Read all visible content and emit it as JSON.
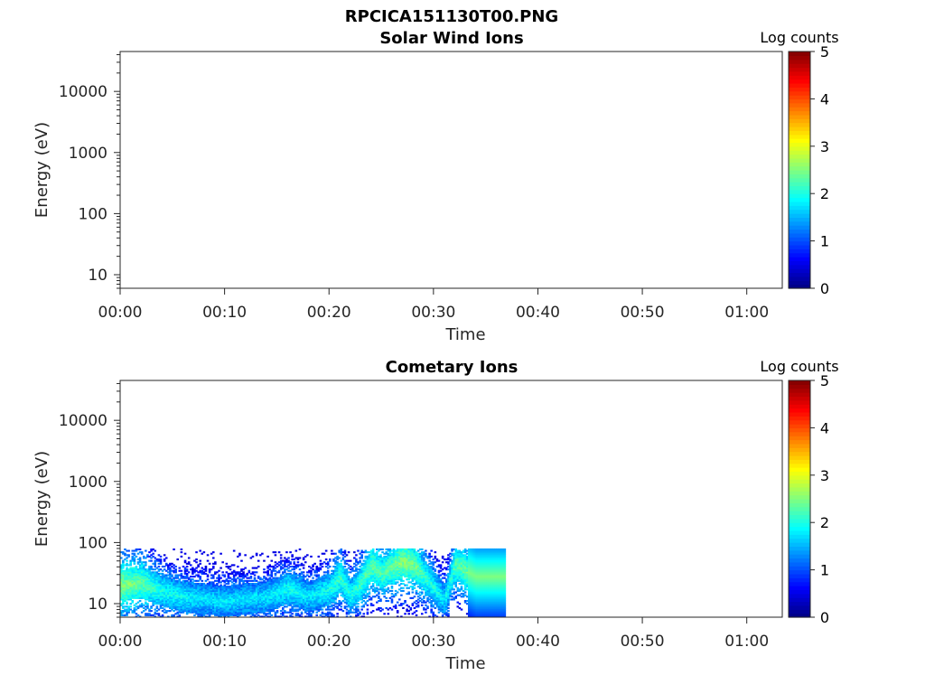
{
  "figure": {
    "title": "RPCICA151130T00.PNG"
  },
  "chart_data": [
    {
      "type": "heatmap",
      "title": "Solar Wind Ions",
      "xlabel": "Time",
      "ylabel": "Energy (eV)",
      "x_ticks": [
        "00:00",
        "00:10",
        "00:20",
        "00:30",
        "00:40",
        "00:50",
        "01:00"
      ],
      "x_range_minutes": [
        0,
        63.4
      ],
      "y_scale": "log",
      "y_ticks": [
        "10",
        "100",
        "1000",
        "10000"
      ],
      "y_range": [
        6,
        45000
      ],
      "colorbar": {
        "label": "Log counts",
        "ticks": [
          "0",
          "1",
          "2",
          "3",
          "4",
          "5"
        ],
        "range": [
          0,
          5
        ],
        "colormap": "jet"
      },
      "data": []
    },
    {
      "type": "heatmap",
      "title": "Cometary Ions",
      "xlabel": "Time",
      "ylabel": "Energy (eV)",
      "x_ticks": [
        "00:00",
        "00:10",
        "00:20",
        "00:30",
        "00:40",
        "00:50",
        "01:00"
      ],
      "x_range_minutes": [
        0,
        63.4
      ],
      "y_scale": "log",
      "y_ticks": [
        "10",
        "100",
        "1000",
        "10000"
      ],
      "y_range": [
        6,
        45000
      ],
      "colorbar": {
        "label": "Log counts",
        "ticks": [
          "0",
          "1",
          "2",
          "3",
          "4",
          "5"
        ],
        "range": [
          0,
          5
        ],
        "colormap": "jet"
      },
      "data_extent": {
        "t_start_min": 0,
        "t_end_min": 36.8,
        "e_min_ev": 6,
        "e_max_ev": 80
      },
      "peak_energy_track": [
        {
          "t_min": 0,
          "e_ev": 20,
          "log_counts": 2.6
        },
        {
          "t_min": 2,
          "e_ev": 22,
          "log_counts": 2.4
        },
        {
          "t_min": 4,
          "e_ev": 16,
          "log_counts": 2.0
        },
        {
          "t_min": 6,
          "e_ev": 13,
          "log_counts": 1.9
        },
        {
          "t_min": 8,
          "e_ev": 12,
          "log_counts": 1.8
        },
        {
          "t_min": 10,
          "e_ev": 11,
          "log_counts": 1.8
        },
        {
          "t_min": 12,
          "e_ev": 12,
          "log_counts": 1.8
        },
        {
          "t_min": 14,
          "e_ev": 13,
          "log_counts": 1.8
        },
        {
          "t_min": 16,
          "e_ev": 18,
          "log_counts": 2.0
        },
        {
          "t_min": 18,
          "e_ev": 13,
          "log_counts": 1.8
        },
        {
          "t_min": 20,
          "e_ev": 17,
          "log_counts": 2.0
        },
        {
          "t_min": 21,
          "e_ev": 28,
          "log_counts": 2.2
        },
        {
          "t_min": 22,
          "e_ev": 14,
          "log_counts": 2.0
        },
        {
          "t_min": 23,
          "e_ev": 22,
          "log_counts": 2.2
        },
        {
          "t_min": 24,
          "e_ev": 42,
          "log_counts": 2.4
        },
        {
          "t_min": 25,
          "e_ev": 32,
          "log_counts": 2.3
        },
        {
          "t_min": 26,
          "e_ev": 40,
          "log_counts": 2.4
        },
        {
          "t_min": 27,
          "e_ev": 50,
          "log_counts": 2.6
        },
        {
          "t_min": 28,
          "e_ev": 45,
          "log_counts": 2.5
        },
        {
          "t_min": 29,
          "e_ev": 30,
          "log_counts": 2.2
        },
        {
          "t_min": 30,
          "e_ev": 18,
          "log_counts": 2.0
        },
        {
          "t_min": 31,
          "e_ev": 12,
          "log_counts": 1.8
        },
        {
          "t_min": 32,
          "e_ev": 45,
          "log_counts": 2.3
        },
        {
          "t_min": 33,
          "e_ev": 35,
          "log_counts": 2.4
        },
        {
          "t_min": 34,
          "e_ev": 28,
          "log_counts": 2.5
        },
        {
          "t_min": 36.8,
          "e_ev": 28,
          "log_counts": 2.5
        }
      ]
    }
  ]
}
